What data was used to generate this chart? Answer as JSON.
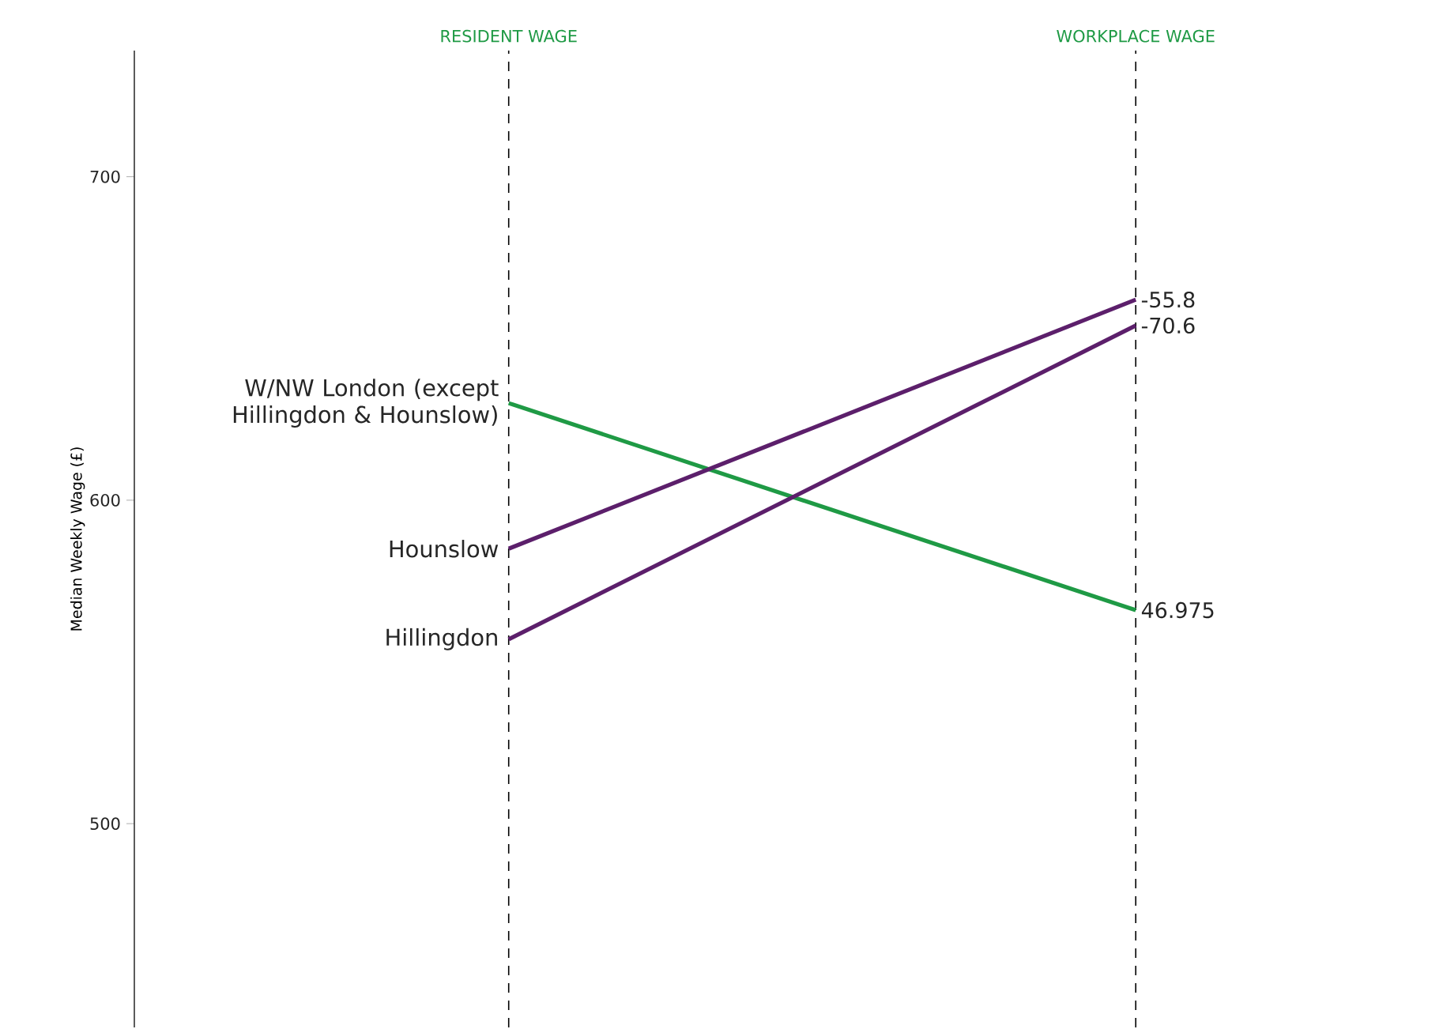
{
  "chart_data": {
    "type": "line",
    "ylabel": "Median Weekly Wage (£)",
    "categories": [
      "RESIDENT WAGE",
      "WORKPLACE WAGE"
    ],
    "series": [
      {
        "name": "W/NW London (except Hillingdon & Hounslow)",
        "color": "#1f9a45",
        "values": [
          630,
          566
        ]
      },
      {
        "name": "Hounslow",
        "color": "#5c1f6b",
        "values": [
          585,
          662
        ]
      },
      {
        "name": "Hillingdon",
        "color": "#5c1f6b",
        "values": [
          557,
          654
        ]
      }
    ],
    "ylim": [
      437,
      739
    ],
    "yticks": [
      500,
      600,
      700
    ],
    "grid": "x",
    "legend": false,
    "marker": "none",
    "line_style": "solid",
    "annotations": [
      {
        "text": "-55.8",
        "x": "WORKPLACE WAGE",
        "y": 662
      },
      {
        "text": "-70.6",
        "x": "WORKPLACE WAGE",
        "y": 654
      },
      {
        "text": "46.975",
        "x": "WORKPLACE WAGE",
        "y": 566
      }
    ]
  }
}
